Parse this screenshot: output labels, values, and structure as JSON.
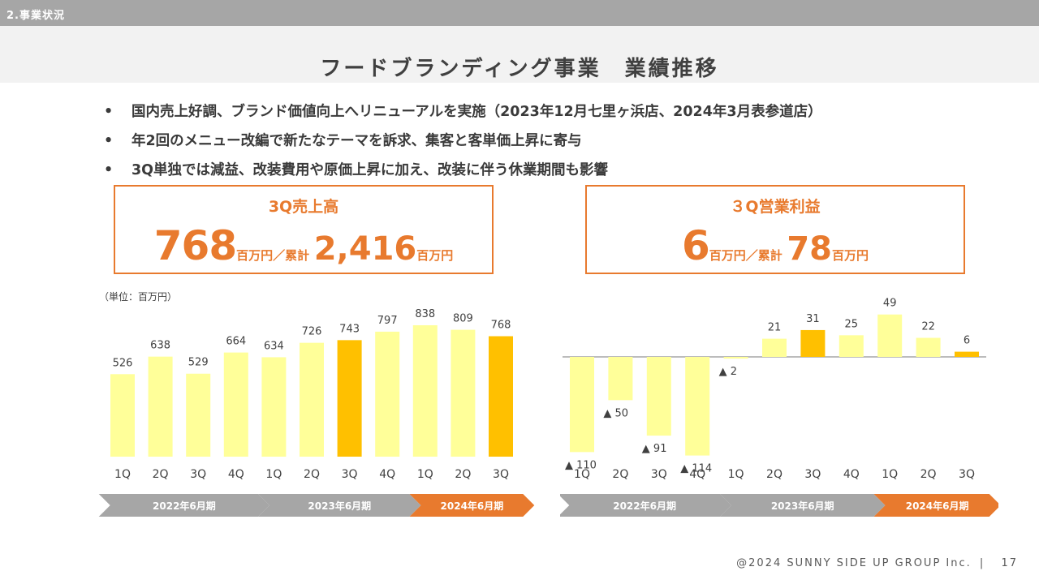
{
  "section": "2.事業状況",
  "title": "フードブランディング事業　業績推移",
  "bullets": [
    "国内売上好調、ブランド価値向上へリニューアルを実施（2023年12月七里ヶ浜店、2024年3月表参道店）",
    "年2回のメニュー改編で新たなテーマを訴求、集客と客単価上昇に寄与",
    "3Q単独では減益、改装費用や原価上昇に加え、改装に伴う休業期間も影響"
  ],
  "bullet_glyph": "•",
  "kpi_sales": {
    "label": "3Q売上高",
    "value": "768",
    "unit1": "百万円／累計",
    "cumulative": "2,416",
    "unit2": "百万円"
  },
  "kpi_profit": {
    "label": "３Q営業利益",
    "value": "6",
    "unit1": "百万円／累計",
    "cumulative": "78",
    "unit2": "百万円"
  },
  "unit_note": "（単位：百万円）",
  "colors": {
    "accent": "#e87a2e",
    "bar_light": "#ffff99",
    "bar_highlight": "#ffc000",
    "band_gray": "#a6a6a6",
    "band_current": "#e87a2e"
  },
  "chart_data": [
    {
      "type": "bar",
      "title": "3Q売上高",
      "unit": "百万円",
      "categories": [
        "1Q",
        "2Q",
        "3Q",
        "4Q",
        "1Q",
        "2Q",
        "3Q",
        "4Q",
        "1Q",
        "2Q",
        "3Q"
      ],
      "values": [
        526,
        638,
        529,
        664,
        634,
        726,
        743,
        797,
        838,
        809,
        768
      ],
      "labels": [
        "526",
        "638",
        "529",
        "664",
        "634",
        "726",
        "743",
        "797",
        "838",
        "809",
        "768"
      ],
      "highlight": [
        6,
        10
      ],
      "periods": [
        {
          "label": "2022年6月期",
          "start": 0,
          "end": 3,
          "current": false
        },
        {
          "label": "2023年6月期",
          "start": 4,
          "end": 7,
          "current": false
        },
        {
          "label": "2024年6月期",
          "start": 8,
          "end": 10,
          "current": true
        }
      ],
      "ylim": [
        0,
        900
      ]
    },
    {
      "type": "bar",
      "title": "３Q営業利益",
      "unit": "百万円",
      "categories": [
        "1Q",
        "2Q",
        "3Q",
        "4Q",
        "1Q",
        "2Q",
        "3Q",
        "4Q",
        "1Q",
        "2Q",
        "3Q"
      ],
      "values": [
        -110,
        -50,
        -91,
        -114,
        -2,
        21,
        31,
        25,
        49,
        22,
        6
      ],
      "labels": [
        "▲ 110",
        "▲ 50",
        "▲ 91",
        "▲ 114",
        "▲ 2",
        "21",
        "31",
        "25",
        "49",
        "22",
        "6"
      ],
      "highlight": [
        6,
        10
      ],
      "periods": [
        {
          "label": "2022年6月期",
          "start": 0,
          "end": 3,
          "current": false
        },
        {
          "label": "2023年6月期",
          "start": 4,
          "end": 7,
          "current": false
        },
        {
          "label": "2024年6月期",
          "start": 8,
          "end": 10,
          "current": true
        }
      ],
      "ylim": [
        -120,
        60
      ]
    }
  ],
  "footer": "@2024 SUNNY SIDE UP GROUP Inc.",
  "separator": "|",
  "page_number": "17"
}
